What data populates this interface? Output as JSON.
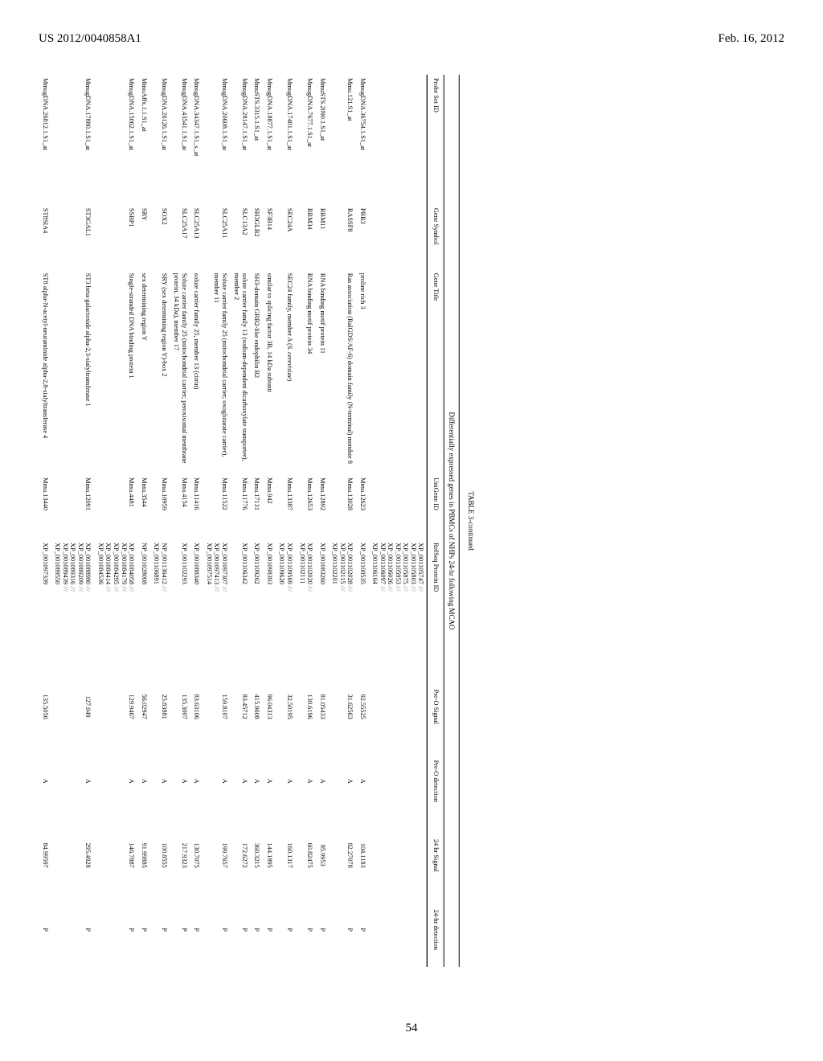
{
  "header": {
    "left": "US 2012/0040858A1",
    "right": "Feb. 16, 2012",
    "page_number": "54"
  },
  "table": {
    "caption": "TABLE 3-continued",
    "subcaption": "Differentially expressed genes in PBMCs of NHPs 24-hr following MCAO",
    "columns": [
      "Probe Set ID",
      "Gene Symbol",
      "Gene Title",
      "UniGene ID",
      "RefSeq Protein ID",
      "Pre-O Signal",
      "Pre-O detection",
      "24 hr Signal",
      "24-hr detection"
    ],
    "widths": [
      "14%",
      "7%",
      "22%",
      "7%",
      "14%",
      "8%",
      "8%",
      "8%",
      "8%"
    ],
    "rows": [
      {
        "cells": [
          "",
          "",
          "",
          "",
          "XP_001105747 ///<br>XP_001105803 ///<br>XP_001105875 ///<br>XP_001105953 ///<br>XP_001106026 ///<br>XP_001106097 ///<br>XP_001106164",
          "",
          "",
          "",
          ""
        ]
      },
      {
        "cells": [
          "MmugDNA.36754.1.S1_at",
          "PRR3",
          "proline rich 3",
          "Mmu.12623",
          "XP_001100535",
          "92.55525",
          "A",
          "104.1183",
          "P"
        ]
      },
      {
        "cells": [
          "Mmu.121.S1_at",
          "RASSF8",
          "Ras association (RalGDS/AF-6) domain family (N-terminal) member 8",
          "Mmu.13028",
          "XP_001102028 ///<br>XP_001102115 ///<br>XP_001102201",
          "31.62563",
          "A",
          "82.27078",
          "P"
        ]
      },
      {
        "cells": [
          "MmuSTS.2090.1.S1_at",
          "RBM11",
          "RNA binding motif protein 11",
          "Mmu.12892",
          "XP_001083260",
          "81.05433",
          "A",
          "85.9953",
          "P"
        ]
      },
      {
        "cells": [
          "MmugDNA.7677.1.S1_at",
          "RBM34",
          "RNA binding motif protein 34",
          "Mmu.12653",
          "XP_001102020 ///<br>XP_001102111",
          "139.6196",
          "A",
          "60.82475",
          "P"
        ]
      },
      {
        "cells": [
          "MmugDNA.17401.1.S1_at",
          "SEC24A",
          "SEC24 family, member A (<i>S. cerevisiae</i>)",
          "Mmu.13387",
          "XP_001109569 ///<br>XP_001109620",
          "32.50195",
          "A",
          "160.1317",
          "P"
        ]
      },
      {
        "cells": [
          "MmugDNA.18877.1.S1_at",
          "SF3B14",
          "similar to splicing factor 3B, 14 kDa subunit",
          "Mmu.942",
          "XP_001098393",
          "96.04313",
          "A",
          "144.1895",
          "P"
        ]
      },
      {
        "cells": [
          "MmuSTS.3315.1.S1_at",
          "SH3GLB2",
          "SH3-domain GRB2-like endophilin B2",
          "Mmu.17131",
          "XP_001109262",
          "415.9608",
          "A",
          "360.3215",
          "P"
        ]
      },
      {
        "cells": [
          "MmugDNA.28147.1.S1_at",
          "SLC13A2",
          "solute carrier family 13 (sodium-dependent dicarboxylate transporter), member 2",
          "Mmu.11776",
          "XP_001106342",
          "83.45712",
          "A",
          "172.6272",
          "P"
        ]
      },
      {
        "cells": [
          "MmugDNA.20608.1.S1_at",
          "SLC25A11",
          "Solute carrier family 25 (mitochondrial carrier; oxoglutarate carrier), member 11",
          "Mmu.11522",
          "XP_001097307 ///<br>XP_001097413 ///<br>XP_001097514",
          "159.8107",
          "A",
          "199.7657",
          "P"
        ]
      },
      {
        "cells": [
          "MmugDNA.34347.1.S1_s_at",
          "SLC25A13",
          "solute carrier family 25, member 13 (citrin)",
          "Mmu.11416",
          "XP_001088340",
          "83.63106",
          "A",
          "130.7075",
          "P"
        ]
      },
      {
        "cells": [
          "MmugDNA.43541.1.S1_at",
          "SLC25A17",
          "Solute carrier family 25 (mitochondrial carrier; peroxisomal membrane protein, 34 kDa), member 17",
          "Mmu.4154",
          "XP_001102293",
          "135.3007",
          "A",
          "217.9323",
          "P"
        ]
      },
      {
        "cells": [
          "MmugDNA.26126.1.S1_at",
          "SOX2",
          "SRY (sex determining region Y)-box 2",
          "Mmu.10959",
          "NP_001136412 ///<br>XP_001106891",
          "25.83881",
          "A",
          "100.8555",
          "P"
        ]
      },
      {
        "cells": [
          "MmuAffx.1.1.S1_at",
          "SRY",
          "sex determining region Y",
          "Mmu.3544",
          "NP_001028008",
          "56.02947",
          "A",
          "91.99885",
          "P"
        ]
      },
      {
        "cells": [
          "MmugDNA.15062.1.S1_at",
          "SSBP1",
          "Single-stranded DNA binding protein 1",
          "Mmu.4481",
          "XP_001084058 ///<br>XP_001084179 ///<br>XP_001084295 ///<br>XP_001084414 ///<br>XP_001084536",
          "129.9467",
          "A",
          "146.7887",
          "P"
        ]
      },
      {
        "cells": [
          "MmugDNA.17880.1.S1_at",
          "ST3GAL1",
          "ST3 beta-galactoside alpha-2,3-sialyltransferase 1",
          "Mmu.12091",
          "XP_001088980 ///<br>XP_001089209 ///<br>XP_001089316 ///<br>XP_001089439 ///<br>XP_001089550",
          "127.049",
          "A",
          "295.4928",
          "P"
        ]
      },
      {
        "cells": [
          "MmugDNA.26812.1.S1_at",
          "ST8SIA4",
          "ST8 alpha-N-acetyl-neuraminide alpha-2,8-sialyltransferase 4",
          "Mmu.13440",
          "XP_001097339",
          "135.5056",
          "A",
          "84.99597",
          "P"
        ]
      }
    ]
  }
}
